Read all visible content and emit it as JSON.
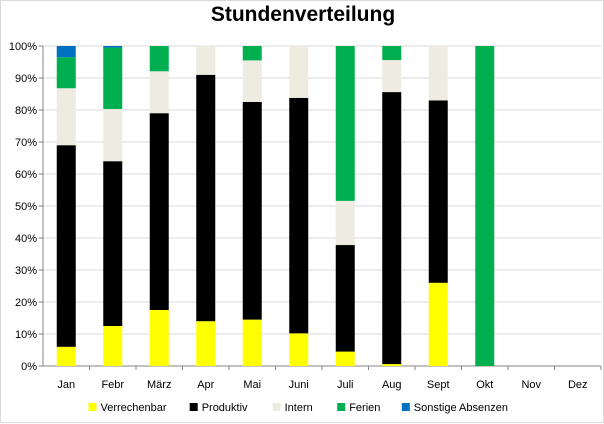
{
  "chart_data": {
    "type": "bar",
    "stacked": true,
    "title": "Stundenverteilung",
    "xlabel": "",
    "ylabel": "",
    "ylim": [
      0,
      100
    ],
    "yticks": [
      "0%",
      "10%",
      "20%",
      "30%",
      "40%",
      "50%",
      "60%",
      "70%",
      "80%",
      "90%",
      "100%"
    ],
    "grid": true,
    "legend_position": "bottom",
    "categories": [
      "Jan",
      "Febr",
      "März",
      "Apr",
      "Mai",
      "Juni",
      "Juli",
      "Aug",
      "Sept",
      "Okt",
      "Nov",
      "Dez"
    ],
    "series": [
      {
        "name": "Verrechenbar",
        "color": "#ffff00",
        "values": [
          6,
          12.5,
          17.5,
          14,
          14.5,
          10.2,
          4.5,
          0.6,
          26,
          0,
          0,
          0
        ]
      },
      {
        "name": "Produktiv",
        "color": "#000000",
        "values": [
          63,
          51.5,
          61.5,
          77,
          68,
          73.6,
          33.3,
          85,
          57,
          0,
          0,
          0
        ]
      },
      {
        "name": "Intern",
        "color": "#eeece1",
        "values": [
          17.8,
          16.3,
          13.1,
          9,
          13,
          16.2,
          13.8,
          10,
          17,
          0,
          0,
          0
        ]
      },
      {
        "name": "Ferien",
        "color": "#00b050",
        "values": [
          9.7,
          19.2,
          7.9,
          0,
          4.5,
          0,
          48.4,
          4.4,
          0,
          100,
          0,
          0
        ]
      },
      {
        "name": "Sonstige Absenzen",
        "color": "#0070c0",
        "values": [
          3.5,
          0.5,
          0,
          0,
          0,
          0,
          0,
          0,
          0,
          0,
          0,
          0
        ]
      }
    ]
  }
}
